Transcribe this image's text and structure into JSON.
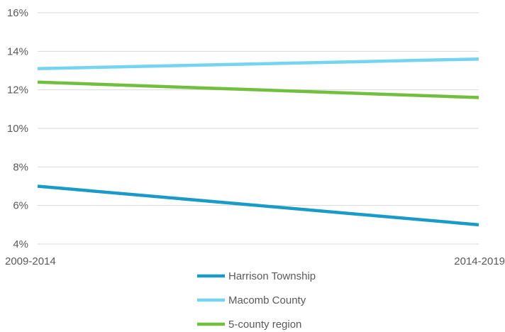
{
  "chart_data": {
    "type": "line",
    "title": "",
    "xlabel": "",
    "ylabel": "",
    "categories": [
      "2009-2014",
      "2014-2019"
    ],
    "ylim": [
      4,
      16
    ],
    "yticks": [
      4,
      6,
      8,
      10,
      12,
      14,
      16
    ],
    "ytick_labels": [
      "4%",
      "6%",
      "8%",
      "10%",
      "12%",
      "14%",
      "16%"
    ],
    "grid": true,
    "legend_position": "bottom",
    "series": [
      {
        "name": "Harrison Township",
        "values": [
          7.0,
          5.0
        ],
        "color": "#1a9bc7"
      },
      {
        "name": "Macomb County",
        "values": [
          13.1,
          13.6
        ],
        "color": "#75d4f1"
      },
      {
        "name": "5-county region",
        "values": [
          12.4,
          11.6
        ],
        "color": "#72bf3f"
      }
    ]
  }
}
